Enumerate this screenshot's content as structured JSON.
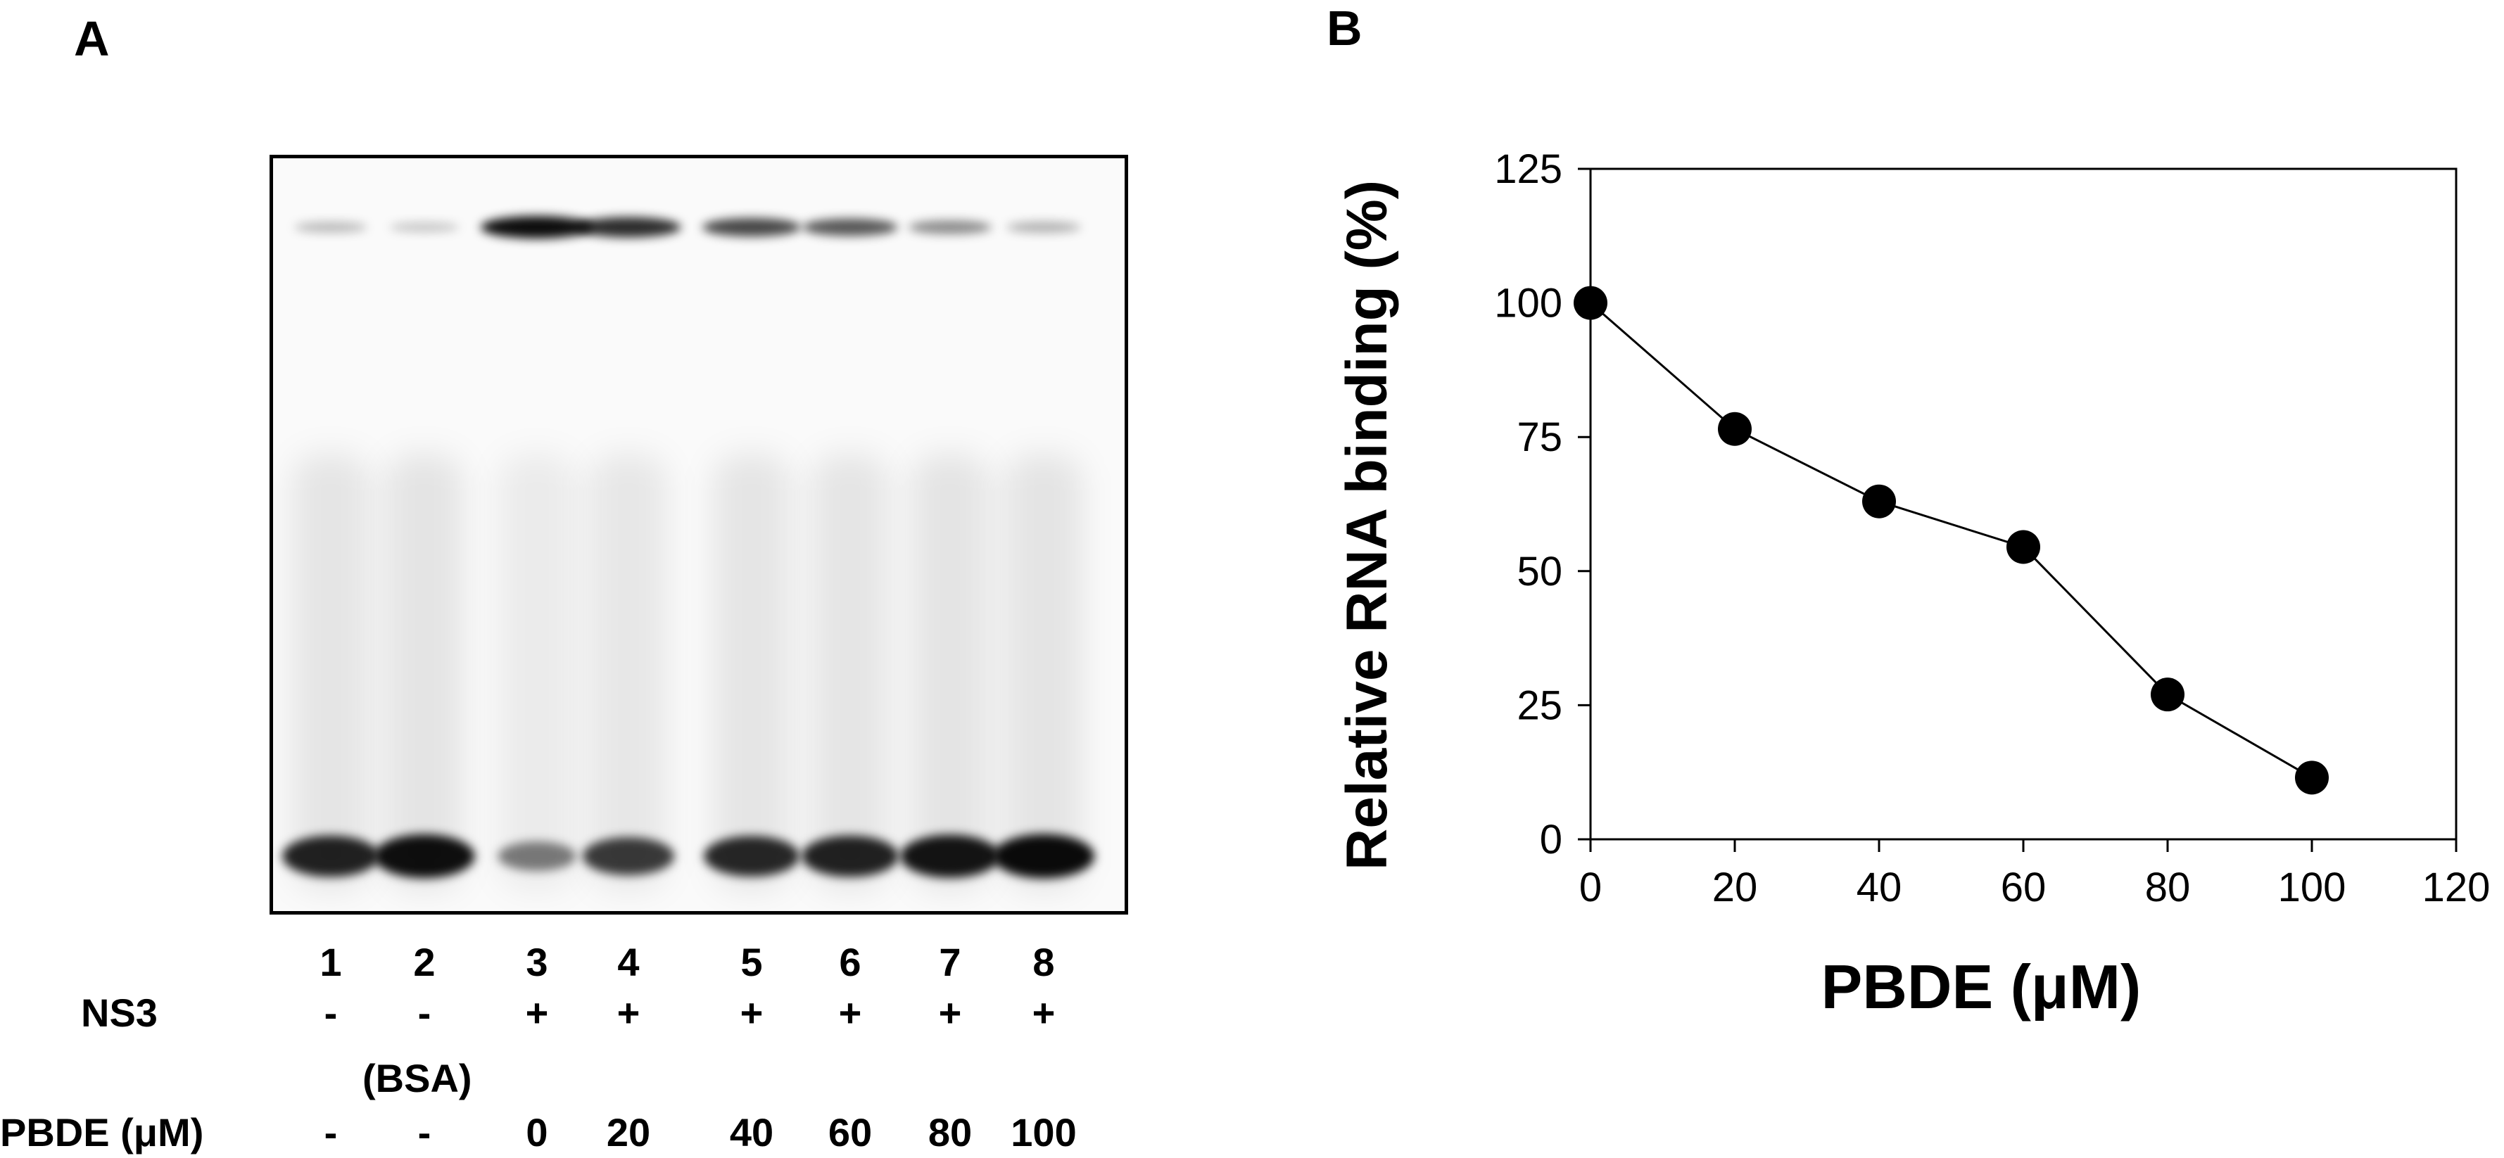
{
  "panel_a": {
    "letter": "A",
    "lanes": [
      {
        "number": "1",
        "ns3": "-",
        "pbde": "-",
        "upper_band": 0.18,
        "lower_band": 0.85
      },
      {
        "number": "2",
        "ns3": "-",
        "pbde": "-",
        "upper_band": 0.12,
        "lower_band": 0.95
      },
      {
        "number": "3",
        "ns3": "+",
        "pbde": "0",
        "upper_band": 1.0,
        "lower_band": 0.38
      },
      {
        "number": "4",
        "ns3": "+",
        "pbde": "20",
        "upper_band": 0.85,
        "lower_band": 0.72
      },
      {
        "number": "5",
        "ns3": "+",
        "pbde": "40",
        "upper_band": 0.72,
        "lower_band": 0.82
      },
      {
        "number": "6",
        "ns3": "+",
        "pbde": "60",
        "upper_band": 0.65,
        "lower_band": 0.85
      },
      {
        "number": "7",
        "ns3": "+",
        "pbde": "80",
        "upper_band": 0.4,
        "lower_band": 0.92
      },
      {
        "number": "8",
        "ns3": "+",
        "pbde": "100",
        "upper_band": 0.22,
        "lower_band": 0.97
      }
    ],
    "ns3_label": "NS3",
    "bsa_label": "(BSA)",
    "pbde_label": "PBDE (μM)"
  },
  "panel_b": {
    "letter": "B"
  },
  "chart_data": {
    "type": "scatter",
    "title": "",
    "xlabel": "PBDE (μM)",
    "ylabel": "Relative RNA binding (%)",
    "xlim": [
      0,
      120
    ],
    "ylim": [
      0,
      125
    ],
    "xticks": [
      0,
      20,
      40,
      60,
      80,
      100,
      120
    ],
    "yticks": [
      0,
      25,
      50,
      75,
      100,
      125
    ],
    "x": [
      0,
      20,
      40,
      60,
      80,
      100
    ],
    "y": [
      100,
      76.5,
      63,
      54.5,
      27,
      11.5
    ],
    "connected": true,
    "legend": "none",
    "grid": false,
    "marker_color": "#000000"
  }
}
